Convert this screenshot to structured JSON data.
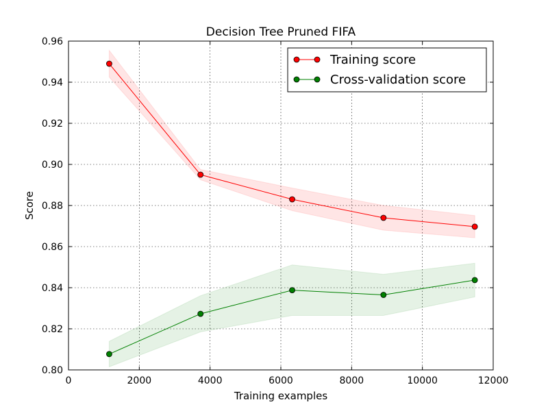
{
  "chart_data": {
    "type": "line",
    "title": "Decision Tree Pruned FIFA",
    "xlabel": "Training examples",
    "ylabel": "Score",
    "xlim": [
      0,
      12000
    ],
    "ylim": [
      0.8,
      0.96
    ],
    "xticks": [
      0,
      2000,
      4000,
      6000,
      8000,
      10000,
      12000
    ],
    "yticks": [
      0.8,
      0.82,
      0.84,
      0.86,
      0.88,
      0.9,
      0.92,
      0.94,
      0.96
    ],
    "xtick_labels": [
      "0",
      "2000",
      "4000",
      "6000",
      "8000",
      "10000",
      "12000"
    ],
    "ytick_labels": [
      "0.80",
      "0.82",
      "0.84",
      "0.86",
      "0.88",
      "0.90",
      "0.92",
      "0.94",
      "0.96"
    ],
    "grid": true,
    "legend_position": "top-right",
    "x": [
      1150,
      3730,
      6320,
      8900,
      11480
    ],
    "series": [
      {
        "name": "Training score",
        "color": "#ff0000",
        "values": [
          0.949,
          0.895,
          0.883,
          0.874,
          0.8697
        ],
        "band_lower": [
          0.9425,
          0.8925,
          0.8775,
          0.868,
          0.8643
        ],
        "band_upper": [
          0.9555,
          0.8975,
          0.8885,
          0.88,
          0.8751
        ]
      },
      {
        "name": "Cross-validation score",
        "color": "#008000",
        "values": [
          0.8077,
          0.8273,
          0.8388,
          0.8365,
          0.8437
        ],
        "band_lower": [
          0.8015,
          0.8185,
          0.8265,
          0.8265,
          0.8355
        ],
        "band_upper": [
          0.8139,
          0.8361,
          0.8511,
          0.8465,
          0.8519
        ]
      }
    ]
  }
}
